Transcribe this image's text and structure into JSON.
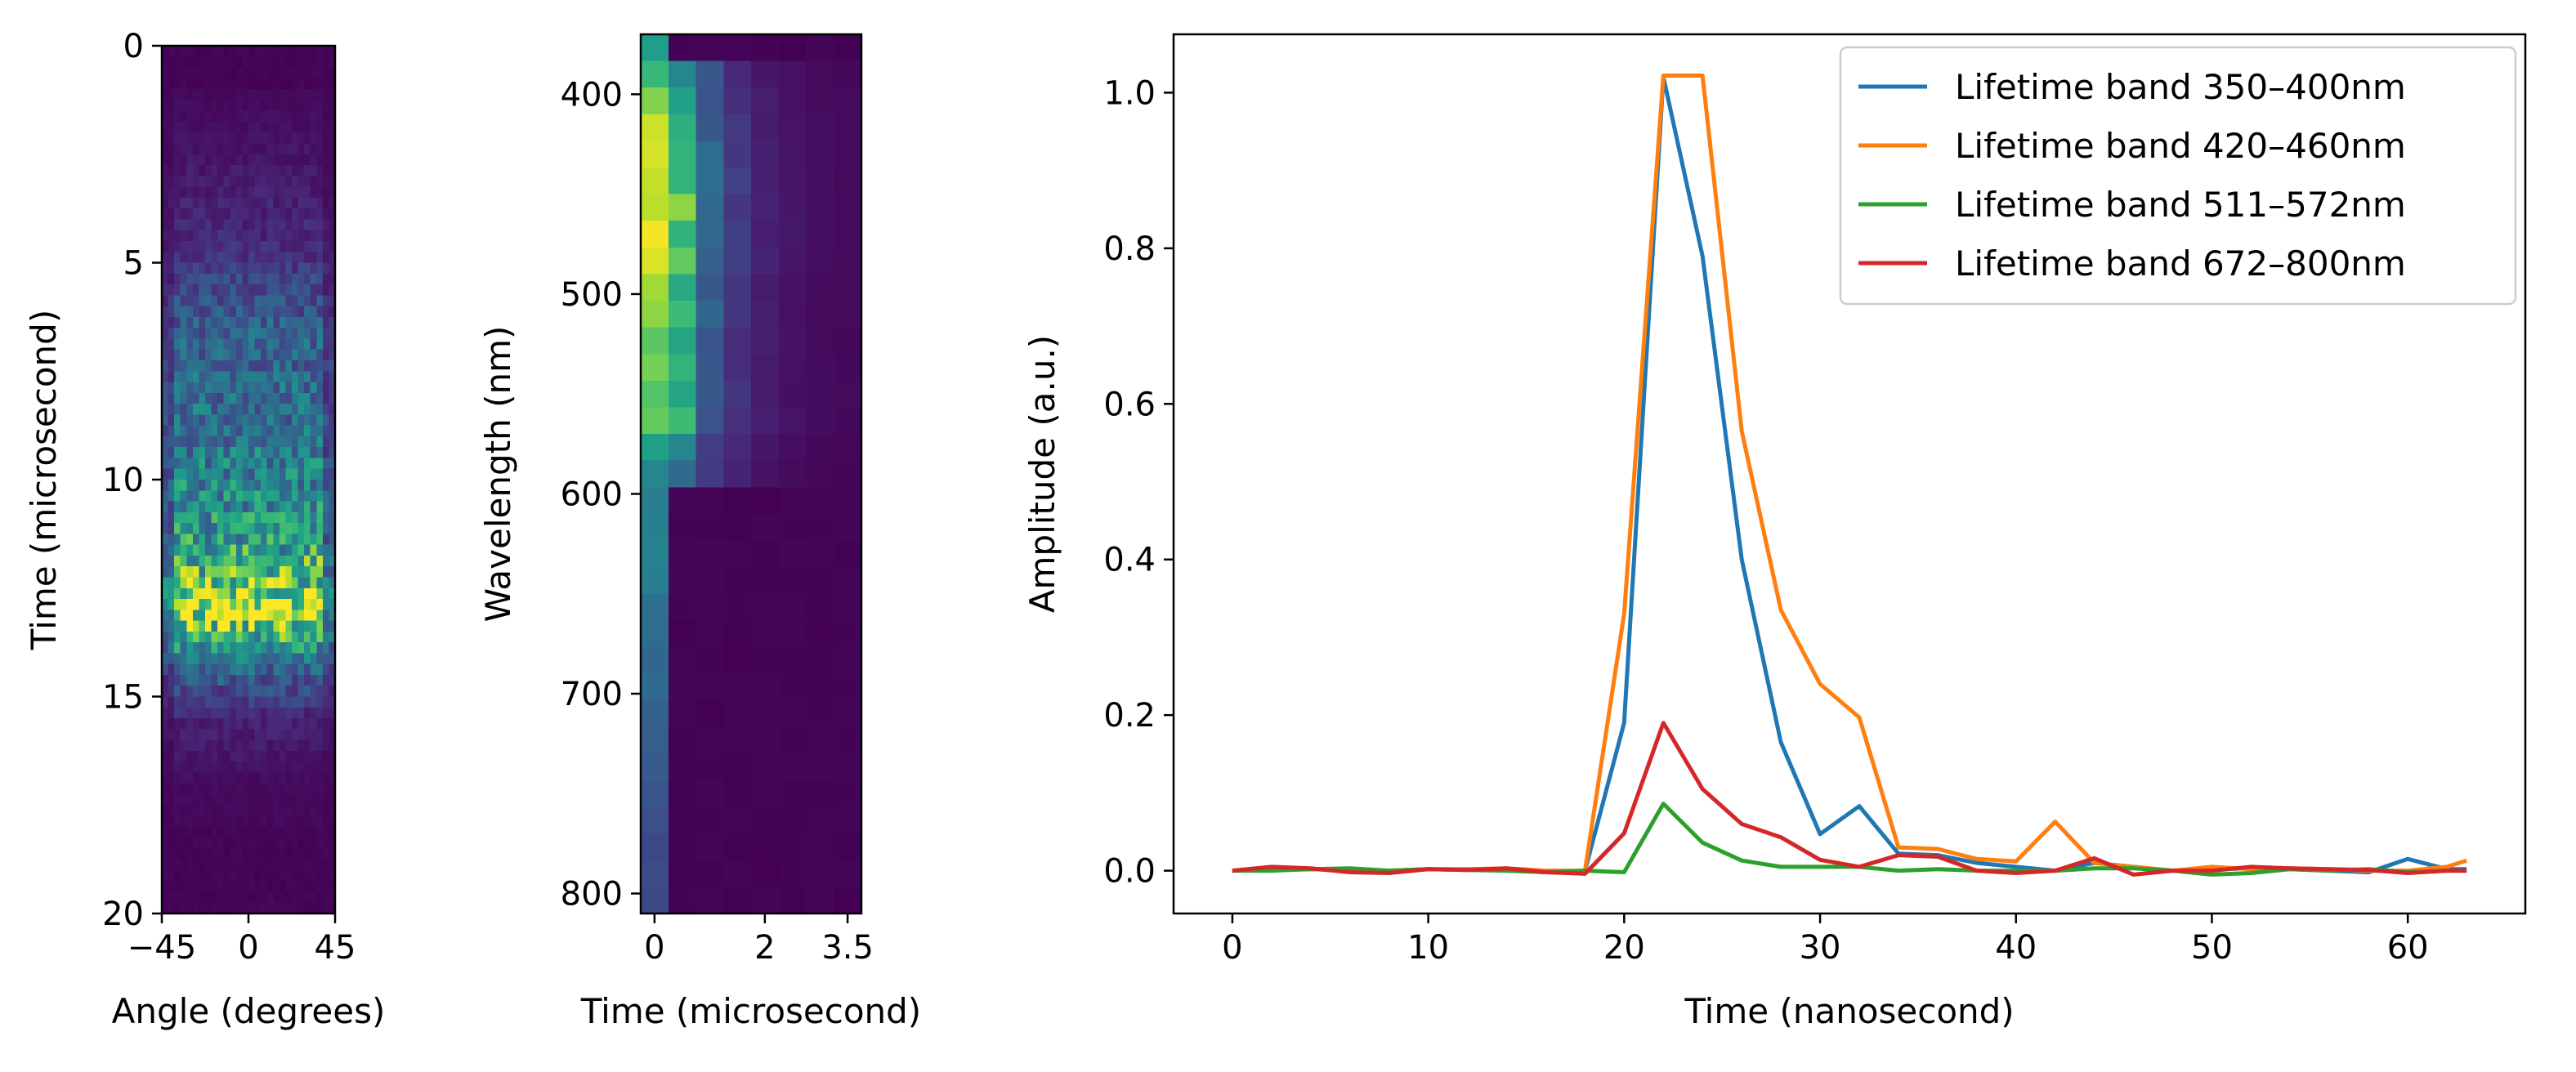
{
  "chart_data": [
    {
      "type": "heatmap",
      "xlabel": "Angle (degrees)",
      "ylabel": "Time (microsecond)",
      "xlim": [
        -45,
        45
      ],
      "ylim": [
        20,
        0
      ],
      "xticks": [
        {
          "value": -45,
          "label": "−45"
        },
        {
          "value": 0,
          "label": "0"
        },
        {
          "value": 45,
          "label": "45"
        }
      ],
      "yticks": [
        {
          "value": 0,
          "label": "0"
        },
        {
          "value": 5,
          "label": "5"
        },
        {
          "value": 10,
          "label": "10"
        },
        {
          "value": 15,
          "label": "15"
        },
        {
          "value": 20,
          "label": "20"
        }
      ],
      "colormap": "viridis",
      "signal_profile": [
        {
          "time": 0,
          "intensity": 0.0
        },
        {
          "time": 2.3,
          "intensity": 0.05
        },
        {
          "time": 4.5,
          "intensity": 0.12
        },
        {
          "time": 6.5,
          "intensity": 0.3
        },
        {
          "time": 9,
          "intensity": 0.38
        },
        {
          "time": 11.5,
          "intensity": 0.55
        },
        {
          "time": 13.1,
          "intensity": 0.92
        },
        {
          "time": 14.2,
          "intensity": 0.35
        },
        {
          "time": 15.5,
          "intensity": 0.1
        },
        {
          "time": 17,
          "intensity": 0.03
        },
        {
          "time": 20,
          "intensity": 0.0
        }
      ]
    },
    {
      "type": "heatmap",
      "xlabel": "Time (microsecond)",
      "ylabel": "Wavelength (nm)",
      "xlim": [
        -0.25,
        3.75
      ],
      "ylim": [
        810,
        370
      ],
      "xticks": [
        {
          "value": 0,
          "label": "0"
        },
        {
          "value": 2,
          "label": "2"
        },
        {
          "value": 3.5,
          "label": "3.5"
        }
      ],
      "yticks": [
        {
          "value": 400,
          "label": "400"
        },
        {
          "value": 500,
          "label": "500"
        },
        {
          "value": 600,
          "label": "600"
        },
        {
          "value": 700,
          "label": "700"
        },
        {
          "value": 800,
          "label": "800"
        }
      ],
      "colormap": "viridis",
      "wavelength_profile": [
        {
          "wavelength": 370,
          "intensity": 0.5
        },
        {
          "wavelength": 395,
          "intensity": 0.75
        },
        {
          "wavelength": 420,
          "intensity": 0.92
        },
        {
          "wavelength": 460,
          "intensity": 1.0
        },
        {
          "wavelength": 500,
          "intensity": 0.85
        },
        {
          "wavelength": 540,
          "intensity": 0.75
        },
        {
          "wavelength": 560,
          "intensity": 0.85
        },
        {
          "wavelength": 580,
          "intensity": 0.5
        },
        {
          "wavelength": 620,
          "intensity": 0.45
        },
        {
          "wavelength": 700,
          "intensity": 0.33
        },
        {
          "wavelength": 810,
          "intensity": 0.2
        }
      ]
    },
    {
      "type": "line",
      "xlabel": "Time (nanosecond)",
      "ylabel": "Amplitude (a.u.)",
      "xlim": [
        -3,
        66
      ],
      "ylim": [
        -0.055,
        1.075
      ],
      "xticks": [
        {
          "value": 0,
          "label": "0"
        },
        {
          "value": 10,
          "label": "10"
        },
        {
          "value": 20,
          "label": "20"
        },
        {
          "value": 30,
          "label": "30"
        },
        {
          "value": 40,
          "label": "40"
        },
        {
          "value": 50,
          "label": "50"
        },
        {
          "value": 60,
          "label": "60"
        }
      ],
      "yticks": [
        {
          "value": 0,
          "label": "0.0"
        },
        {
          "value": 0.2,
          "label": "0.2"
        },
        {
          "value": 0.4,
          "label": "0.4"
        },
        {
          "value": 0.6,
          "label": "0.6"
        },
        {
          "value": 0.8,
          "label": "0.8"
        },
        {
          "value": 1.0,
          "label": "1.0"
        }
      ],
      "legend_position": "top-right",
      "x": [
        0,
        2,
        4,
        6,
        8,
        10,
        12,
        14,
        16,
        18,
        20,
        22,
        24,
        26,
        28,
        30,
        32,
        34,
        36,
        38,
        40,
        42,
        44,
        46,
        48,
        50,
        52,
        54,
        56,
        58,
        60,
        62,
        63
      ],
      "series": [
        {
          "name": "Lifetime band 350–400nm",
          "color": "#1f77b4",
          "values": [
            0.0,
            0.003,
            0.002,
            0.001,
            0.0,
            0.002,
            0.001,
            0.002,
            -0.002,
            0.0,
            0.19,
            1.02,
            0.79,
            0.4,
            0.165,
            0.047,
            0.083,
            0.022,
            0.02,
            0.01,
            0.005,
            0.0,
            0.01,
            0.005,
            0.0,
            0.002,
            0.003,
            0.002,
            0.0,
            -0.002,
            0.015,
            0.002,
            0.002
          ]
        },
        {
          "name": "Lifetime band 420–460nm",
          "color": "#ff7f0e",
          "values": [
            0.0,
            0.003,
            0.002,
            0.0,
            0.0,
            0.002,
            0.002,
            0.003,
            0.0,
            0.0,
            0.33,
            1.022,
            1.022,
            0.565,
            0.335,
            0.24,
            0.197,
            0.03,
            0.028,
            0.015,
            0.012,
            0.063,
            0.01,
            0.005,
            0.0,
            0.005,
            0.002,
            0.003,
            0.002,
            0.0,
            0.0,
            0.005,
            0.013
          ]
        },
        {
          "name": "Lifetime band 511–572nm",
          "color": "#2ca02c",
          "values": [
            0.0,
            0.0,
            0.002,
            0.003,
            0.0,
            0.002,
            0.001,
            0.0,
            -0.002,
            0.0,
            -0.002,
            0.086,
            0.036,
            0.013,
            0.005,
            0.005,
            0.005,
            0.0,
            0.002,
            0.0,
            0.0,
            0.0,
            0.003,
            0.003,
            0.0,
            -0.005,
            -0.003,
            0.002,
            0.0,
            0.002,
            -0.002,
            0.0,
            0.0
          ]
        },
        {
          "name": "Lifetime band 672–800nm",
          "color": "#d62728",
          "values": [
            0.0,
            0.005,
            0.003,
            -0.002,
            -0.003,
            0.002,
            0.001,
            0.003,
            -0.002,
            -0.004,
            0.048,
            0.19,
            0.105,
            0.06,
            0.043,
            0.014,
            0.005,
            0.02,
            0.018,
            0.0,
            -0.003,
            0.0,
            0.016,
            -0.005,
            0.0,
            0.0,
            0.005,
            0.003,
            0.002,
            0.001,
            -0.003,
            0.0,
            0.0
          ]
        }
      ]
    }
  ]
}
